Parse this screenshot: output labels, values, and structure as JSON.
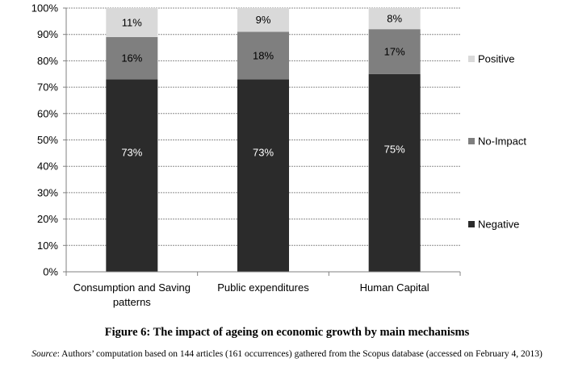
{
  "chart_data": {
    "type": "bar",
    "stacked": true,
    "percent": true,
    "categories": [
      [
        "Consumption and Saving",
        "patterns"
      ],
      [
        "Public expenditures"
      ],
      [
        "Human Capital"
      ]
    ],
    "series": [
      {
        "name": "Negative",
        "values": [
          73,
          73,
          75
        ],
        "color": "#2b2b2b",
        "label_color": "#ffffff"
      },
      {
        "name": "No-Impact",
        "values": [
          16,
          18,
          17
        ],
        "color": "#7f7f7f",
        "label_color": "#000000"
      },
      {
        "name": "Positive",
        "values": [
          11,
          9,
          8
        ],
        "color": "#d9d9d9",
        "label_color": "#000000"
      }
    ],
    "data_labels": [
      [
        "73%",
        "73%",
        "75%"
      ],
      [
        "16%",
        "18%",
        "17%"
      ],
      [
        "11%",
        "9%",
        "8%"
      ]
    ],
    "ylim": [
      0,
      100
    ],
    "yticks": [
      "0%",
      "10%",
      "20%",
      "30%",
      "40%",
      "50%",
      "60%",
      "70%",
      "80%",
      "90%",
      "100%"
    ],
    "grid": true,
    "legend_position": "right",
    "legend_order": [
      "Positive",
      "No-Impact",
      "Negative"
    ]
  },
  "caption": {
    "title": "Figure 6: The impact of ageing on economic growth by main mechanisms",
    "source_label": "Source",
    "source_text": ": Authors’ computation based on 144 articles (161 occurrences) gathered from the Scopus database (accessed on February 4, 2013)"
  }
}
